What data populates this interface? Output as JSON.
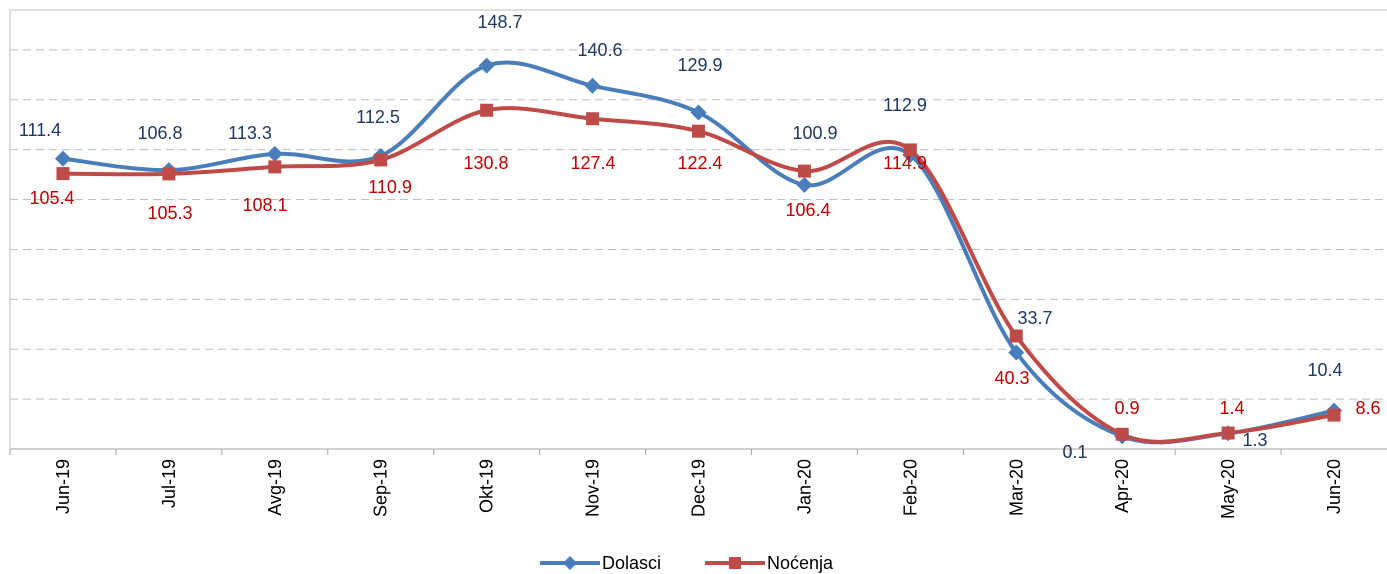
{
  "chart_data": {
    "type": "line",
    "categories": [
      "Jun-19",
      "Jul-19",
      "Avg-19",
      "Sep-19",
      "Okt-19",
      "Nov-19",
      "Dec-19",
      "Jan-20",
      "Feb-20",
      "Mar-20",
      "Apr-20",
      "May-20",
      "Jun-20"
    ],
    "series": [
      {
        "name": "Dolasci",
        "color": "#4a7ebb",
        "label_color": "#1f3864",
        "marker": "diamond",
        "values": [
          111.4,
          106.8,
          113.3,
          112.5,
          148.7,
          140.6,
          129.9,
          100.9,
          112.9,
          33.7,
          0.1,
          1.3,
          10.4
        ]
      },
      {
        "name": "Noćenja",
        "color": "#be4b48",
        "label_color": "#c00000",
        "marker": "square",
        "values": [
          105.4,
          105.3,
          108.1,
          110.9,
          130.8,
          127.4,
          122.4,
          106.4,
          114.9,
          40.3,
          0.9,
          1.4,
          8.6
        ]
      }
    ],
    "ylim": [
      -5,
      175
    ],
    "yticks": [
      15,
      35,
      55,
      75,
      95,
      115,
      135,
      155
    ],
    "grid": true,
    "legend": "bottom"
  }
}
